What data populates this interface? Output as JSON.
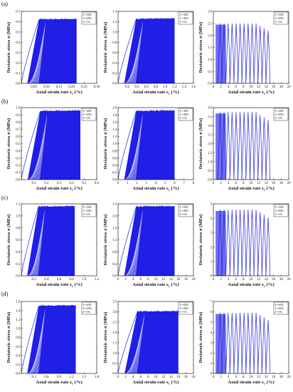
{
  "figure": {
    "rows": [
      {
        "label": "(a)",
        "panels": [
          {
            "ylabel": "Deviatoric stress σ (MPa)",
            "xlabel": "Axial strain rate ε",
            "xlabel_sub": "y",
            "xlabel_unit": " (%)",
            "xticks": [
              "0.05",
              "0.10",
              "0.15",
              "0.20",
              "0.25",
              "0.30"
            ],
            "yticks": [
              "0.0",
              "0.1",
              "0.2",
              "0.3",
              "0.4",
              "0.5",
              "0.6",
              "0.7"
            ],
            "legend": [
              "S =30%",
              "S =20%",
              "S =1%"
            ]
          },
          {
            "ylabel": "Deviatoric stress σ (MPa)",
            "xlabel": "Axial strain rate ε",
            "xlabel_sub": "y",
            "xlabel_unit": " (%)",
            "xticks": [
              "0.2",
              "0.4",
              "0.6",
              "0.8",
              "1.0",
              "1.2",
              "1.4",
              "1.6"
            ],
            "yticks": [
              "0.0",
              "0.2",
              "0.4",
              "0.6",
              "0.8",
              "1.0",
              "1.2",
              "1.4"
            ],
            "legend": [
              "S =30%",
              "S =40%",
              "S =1%"
            ]
          },
          {
            "ylabel": "Deviatoric stress σ (MPa)",
            "xlabel": "Axial strain rate ε",
            "xlabel_sub": "y",
            "xlabel_unit": " (%)",
            "xticks": [
              "0",
              "2",
              "4",
              "6",
              "8",
              "10",
              "12",
              "14",
              "16",
              "18",
              "20"
            ],
            "yticks": [
              "0.0",
              "0.5",
              "1.0",
              "1.5",
              "2.0",
              "2.5",
              "3.0"
            ],
            "legend": [
              "S =30%",
              "S =60%",
              "S =1%"
            ]
          }
        ]
      },
      {
        "label": "(b)",
        "panels": [
          {
            "ylabel": "Deviatoric stress σ (MPa)",
            "xlabel": "Axial strain rate ε",
            "xlabel_sub": "y",
            "xlabel_unit": " (%)",
            "xticks": [
              "0.1",
              "0.2",
              "0.3",
              "0.4",
              "0.5",
              "0.6"
            ],
            "yticks": [
              "0.0",
              "0.1",
              "0.2",
              "0.3",
              "0.4",
              "0.5",
              "0.6",
              "0.7",
              "0.8",
              "0.9",
              "1.0"
            ],
            "legend": [
              "S =40%",
              "S =20%",
              "S =1%"
            ]
          },
          {
            "ylabel": "Deviatoric stress σ (MPa)",
            "xlabel": "Axial strain rate ε",
            "xlabel_sub": "y",
            "xlabel_unit": " (%)",
            "xticks": [
              "0",
              "1",
              "2",
              "3",
              "4",
              "5",
              "6",
              "7",
              "8"
            ],
            "yticks": [
              "0.0",
              "0.2",
              "0.4",
              "0.6",
              "0.8",
              "1.0",
              "1.2",
              "1.4",
              "1.6",
              "1.8",
              "2.0"
            ],
            "legend": [
              "S =40%",
              "S =40%",
              "S =1%"
            ]
          },
          {
            "ylabel": "Deviatoric stress σ (MPa)",
            "xlabel": "Axial strain rate ε",
            "xlabel_sub": "y",
            "xlabel_unit": " (%)",
            "xticks": [
              "0",
              "2",
              "4",
              "6",
              "8",
              "10",
              "12",
              "14",
              "16",
              "18",
              "20"
            ],
            "yticks": [
              "0.0",
              "0.5",
              "1.0",
              "1.5",
              "2.0",
              "2.5",
              "3.0",
              "3.5",
              "4.0"
            ],
            "legend": [
              "S =40%",
              "S =60%",
              "S =1%"
            ]
          }
        ]
      },
      {
        "label": "(c)",
        "panels": [
          {
            "ylabel": "Deviatoric stress σ (MPa)",
            "xlabel": "Axial strain rate ε",
            "xlabel_sub": "y",
            "xlabel_unit": " (%)",
            "xticks": [
              "0.2",
              "0.4",
              "0.6",
              "0.8",
              "1.0",
              "1.2"
            ],
            "yticks": [
              "0.0",
              "0.2",
              "0.4",
              "0.6",
              "0.8",
              "1.0",
              "1.2"
            ],
            "legend": [
              "S =50%",
              "S =20%",
              "S =1%"
            ]
          },
          {
            "ylabel": "Deviatoric stress σ (MPa)",
            "xlabel": "Axial strain rate ε",
            "xlabel_sub": "y",
            "xlabel_unit": " (%)",
            "xticks": [
              "0",
              "2",
              "4",
              "6",
              "8",
              "10",
              "12",
              "14",
              "16",
              "18",
              "20"
            ],
            "yticks": [
              "0.0",
              "0.4",
              "0.8",
              "1.2",
              "1.6",
              "2.0",
              "2.4"
            ],
            "legend": [
              "S =50%",
              "S =40%",
              "S =1%"
            ]
          },
          {
            "ylabel": "Deviatoric stress σ (MPa)",
            "xlabel": "Axial strain rate ε",
            "xlabel_sub": "y",
            "xlabel_unit": " (%)",
            "xticks": [
              "0",
              "2",
              "4",
              "6",
              "8",
              "10",
              "12",
              "14",
              "16",
              "18",
              "20"
            ],
            "yticks": [
              "0",
              "1",
              "2",
              "3",
              "4",
              "5"
            ],
            "legend": [
              "S =50%",
              "S =60%",
              "S =1%"
            ]
          }
        ]
      },
      {
        "label": "(d)",
        "panels": [
          {
            "ylabel": "Deviatoric stress σ (MPa)",
            "xlabel": "Axial strain rate ε",
            "xlabel_sub": "y",
            "xlabel_unit": " (%)",
            "xticks": [
              "0.3",
              "0.6",
              "0.9",
              "1.2",
              "1.5",
              "1.8"
            ],
            "yticks": [
              "0.0",
              "0.2",
              "0.4",
              "0.6",
              "0.8",
              "1.0",
              "1.2",
              "1.4",
              "1.6"
            ],
            "legend": [
              "S =65%",
              "S =20%",
              "S =1%"
            ]
          },
          {
            "ylabel": "Deviatoric stress σ (MPa)",
            "xlabel": "Axial strain rate ε",
            "xlabel_sub": "y",
            "xlabel_unit": " (%)",
            "xticks": [
              "0",
              "2",
              "4",
              "6",
              "8",
              "10",
              "12",
              "14",
              "16",
              "18",
              "20"
            ],
            "yticks": [
              "0.0",
              "0.5",
              "1.0",
              "1.5",
              "2.0",
              "2.5",
              "3.0",
              "3.5"
            ],
            "legend": [
              "S =65%",
              "S =40%",
              "S =1%"
            ]
          },
          {
            "ylabel": "Deviatoric stress σ (MPa)",
            "xlabel": "Axial strain rate ε",
            "xlabel_sub": "y",
            "xlabel_unit": " (%)",
            "xticks": [
              "0",
              "2",
              "4",
              "6",
              "8",
              "10",
              "12",
              "14",
              "16",
              "18",
              "20"
            ],
            "yticks": [
              "0",
              "1",
              "2",
              "3",
              "4",
              "5",
              "6",
              "7"
            ],
            "legend": [
              "S =65%",
              "S =60%",
              "S =1%"
            ]
          }
        ]
      }
    ]
  },
  "chart_data": [
    {
      "type": "line",
      "panel": "a-1",
      "xlabel": "Axial strain rate εy (%)",
      "ylabel": "Deviatoric stress σ (MPa)",
      "xlim": [
        0,
        0.3
      ],
      "ylim": [
        0,
        0.7
      ],
      "legend": [
        "S =30%",
        "S =20%",
        "S =1%"
      ],
      "peak_stress": 0.62,
      "max_strain": 0.22,
      "color": "#1f1fe6",
      "cycle_mode": "dense"
    },
    {
      "type": "line",
      "panel": "a-2",
      "xlabel": "Axial strain rate εy (%)",
      "ylabel": "Deviatoric stress σ (MPa)",
      "xlim": [
        0,
        1.6
      ],
      "ylim": [
        0,
        1.4
      ],
      "legend": [
        "S =30%",
        "S =40%",
        "S =1%"
      ],
      "peak_stress": 1.25,
      "max_strain": 1.2,
      "color": "#1f1fe6",
      "cycle_mode": "dense"
    },
    {
      "type": "line",
      "panel": "a-3",
      "xlabel": "Axial strain rate εy (%)",
      "ylabel": "Deviatoric stress σ (MPa)",
      "xlim": [
        0,
        20
      ],
      "ylim": [
        0,
        3
      ],
      "legend": [
        "S =30%",
        "S =60%",
        "S =1%"
      ],
      "peak_stress": 2.5,
      "max_strain": 15,
      "color": "#1f1fe6",
      "cycle_mode": "loops"
    },
    {
      "type": "line",
      "panel": "b-1",
      "xlabel": "Axial strain rate εy (%)",
      "ylabel": "Deviatoric stress σ (MPa)",
      "xlim": [
        0,
        0.6
      ],
      "ylim": [
        0,
        1.0
      ],
      "legend": [
        "S =40%",
        "S =20%",
        "S =1%"
      ],
      "peak_stress": 0.95,
      "max_strain": 0.47,
      "color": "#1f1fe6",
      "cycle_mode": "dense"
    },
    {
      "type": "line",
      "panel": "b-2",
      "xlabel": "Axial strain rate εy (%)",
      "ylabel": "Deviatoric stress σ (MPa)",
      "xlim": [
        0,
        8
      ],
      "ylim": [
        0,
        2.0
      ],
      "legend": [
        "S =40%",
        "S =40%",
        "S =1%"
      ],
      "peak_stress": 1.9,
      "max_strain": 6.0,
      "color": "#1f1fe6",
      "cycle_mode": "dense"
    },
    {
      "type": "line",
      "panel": "b-3",
      "xlabel": "Axial strain rate εy (%)",
      "ylabel": "Deviatoric stress σ (MPa)",
      "xlim": [
        0,
        20
      ],
      "ylim": [
        0,
        4.0
      ],
      "legend": [
        "S =40%",
        "S =60%",
        "S =1%"
      ],
      "peak_stress": 3.75,
      "max_strain": 15,
      "color": "#1f1fe6",
      "cycle_mode": "loops"
    },
    {
      "type": "line",
      "panel": "c-1",
      "xlabel": "Axial strain rate εy (%)",
      "ylabel": "Deviatoric stress σ (MPa)",
      "xlim": [
        0,
        1.2
      ],
      "ylim": [
        0,
        1.2
      ],
      "legend": [
        "S =50%",
        "S =20%",
        "S =1%"
      ],
      "peak_stress": 1.15,
      "max_strain": 0.85,
      "color": "#1f1fe6",
      "cycle_mode": "dense"
    },
    {
      "type": "line",
      "panel": "c-2",
      "xlabel": "Axial strain rate εy (%)",
      "ylabel": "Deviatoric stress σ (MPa)",
      "xlim": [
        0,
        20
      ],
      "ylim": [
        0,
        2.4
      ],
      "legend": [
        "S =50%",
        "S =40%",
        "S =1%"
      ],
      "peak_stress": 2.3,
      "max_strain": 15,
      "color": "#1f1fe6",
      "cycle_mode": "dense"
    },
    {
      "type": "line",
      "panel": "c-3",
      "xlabel": "Axial strain rate εy (%)",
      "ylabel": "Deviatoric stress σ (MPa)",
      "xlim": [
        0,
        20
      ],
      "ylim": [
        0,
        5
      ],
      "legend": [
        "S =50%",
        "S =60%",
        "S =1%"
      ],
      "peak_stress": 4.6,
      "max_strain": 15,
      "color": "#1f1fe6",
      "cycle_mode": "loops"
    },
    {
      "type": "line",
      "panel": "d-1",
      "xlabel": "Axial strain rate εy (%)",
      "ylabel": "Deviatoric stress σ (MPa)",
      "xlim": [
        0,
        1.8
      ],
      "ylim": [
        0,
        1.6
      ],
      "legend": [
        "S =65%",
        "S =20%",
        "S =1%"
      ],
      "peak_stress": 1.5,
      "max_strain": 1.3,
      "color": "#1f1fe6",
      "cycle_mode": "dense"
    },
    {
      "type": "line",
      "panel": "d-2",
      "xlabel": "Axial strain rate εy (%)",
      "ylabel": "Deviatoric stress σ (MPa)",
      "xlim": [
        0,
        20
      ],
      "ylim": [
        0,
        3.5
      ],
      "legend": [
        "S =65%",
        "S =40%",
        "S =1%"
      ],
      "peak_stress": 3.0,
      "max_strain": 16,
      "color": "#1f1fe6",
      "cycle_mode": "dense"
    },
    {
      "type": "line",
      "panel": "d-3",
      "xlabel": "Axial strain rate εy (%)",
      "ylabel": "Deviatoric stress σ (MPa)",
      "xlim": [
        0,
        20
      ],
      "ylim": [
        0,
        7
      ],
      "legend": [
        "S =65%",
        "S =60%",
        "S =1%"
      ],
      "peak_stress": 5.9,
      "max_strain": 15,
      "color": "#1f1fe6",
      "cycle_mode": "loops"
    }
  ]
}
